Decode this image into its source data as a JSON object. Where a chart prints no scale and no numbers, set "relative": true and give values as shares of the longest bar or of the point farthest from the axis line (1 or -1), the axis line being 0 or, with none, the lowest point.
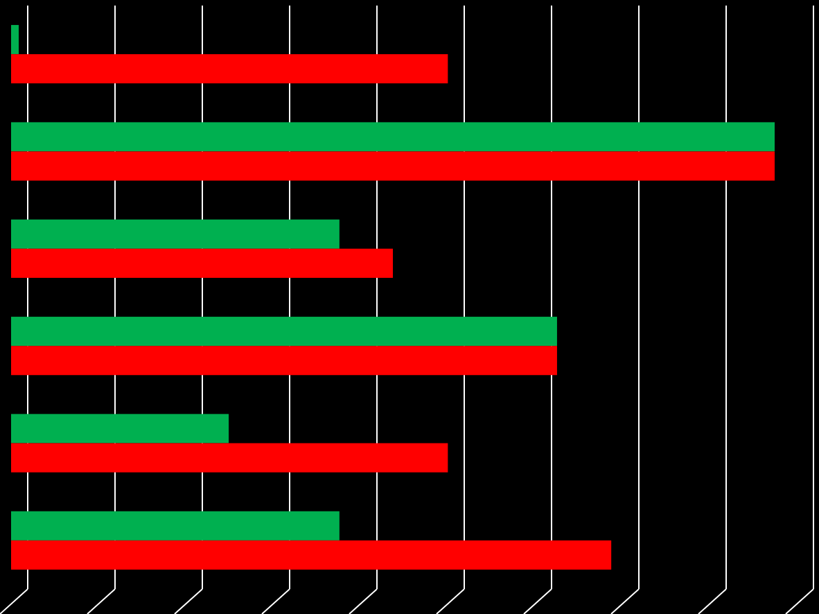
{
  "chart_data": {
    "type": "bar",
    "orientation": "horizontal",
    "relative": true,
    "grid": "x",
    "categories": [
      null,
      null,
      null,
      null,
      null,
      null
    ],
    "series": [
      {
        "color": "#00b050",
        "values": [
          0.01,
          1,
          0.43,
          0.715,
          0.285,
          0.43
        ]
      },
      {
        "color": "#ff0000",
        "values": [
          0.572,
          1,
          0.5,
          0.715,
          0.572,
          0.786
        ]
      }
    ]
  }
}
